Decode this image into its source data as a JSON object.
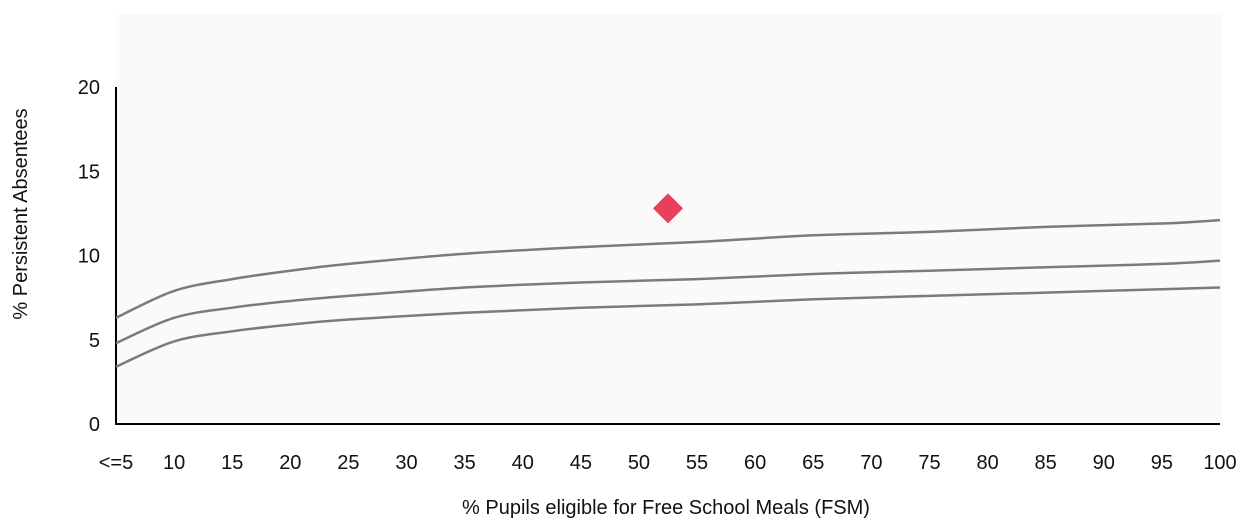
{
  "chart_data": {
    "type": "line",
    "xlabel": "% Pupils eligible for Free School Meals (FSM)",
    "ylabel": "% Persistent Absentees",
    "ylim": [
      0,
      20
    ],
    "y_ticks": [
      "0",
      "5",
      "10",
      "15",
      "20"
    ],
    "x_ticks": [
      "<=5",
      "10",
      "15",
      "20",
      "25",
      "30",
      "35",
      "40",
      "45",
      "50",
      "55",
      "60",
      "65",
      "70",
      "75",
      "80",
      "85",
      "90",
      "95",
      "100"
    ],
    "grid": false,
    "series": [
      {
        "x": [
          0,
          5,
          10,
          15,
          20,
          30,
          40,
          50,
          60,
          70,
          80,
          90,
          95
        ],
        "values": [
          6.3,
          7.9,
          8.6,
          9.1,
          9.5,
          10.1,
          10.5,
          10.8,
          11.2,
          11.4,
          11.7,
          11.9,
          12.1
        ]
      },
      {
        "x": [
          0,
          5,
          10,
          15,
          20,
          30,
          40,
          50,
          60,
          70,
          80,
          90,
          95
        ],
        "values": [
          4.8,
          6.3,
          6.9,
          7.3,
          7.6,
          8.1,
          8.4,
          8.6,
          8.9,
          9.1,
          9.3,
          9.5,
          9.7
        ]
      },
      {
        "x": [
          0,
          5,
          10,
          15,
          20,
          30,
          40,
          50,
          60,
          70,
          80,
          90,
          95
        ],
        "values": [
          3.4,
          4.9,
          5.5,
          5.9,
          6.2,
          6.6,
          6.9,
          7.1,
          7.4,
          7.6,
          7.8,
          8.0,
          8.1
        ]
      }
    ],
    "points": [
      {
        "x": 47.5,
        "y": 12.8,
        "marker": "diamond",
        "color": "#e8405a"
      }
    ],
    "curve_color": "#7b7b7b"
  }
}
